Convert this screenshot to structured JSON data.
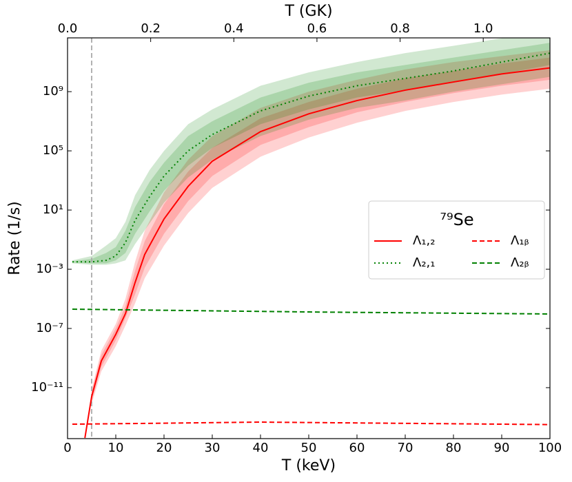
{
  "chart_data": {
    "type": "line",
    "xlabel": "T (keV)",
    "ylabel": "Rate (1/s)",
    "x2label": "T (GK)",
    "xlim": [
      0,
      100
    ],
    "xticks": [
      0,
      10,
      20,
      30,
      40,
      50,
      60,
      70,
      80,
      90,
      100
    ],
    "x2lim": [
      0,
      1.1605
    ],
    "x2ticks": [
      {
        "value": 0,
        "label": "0.0"
      },
      0.2,
      0.4,
      0.6,
      0.8,
      {
        "value": 1,
        "label": "1.0"
      }
    ],
    "ylim": [
      3.6e-15,
      4300000000000.0
    ],
    "yscale": "log",
    "yticks": [
      {
        "value": 1e-11,
        "label": "10⁻¹¹"
      },
      {
        "value": 1e-07,
        "label": "10⁻⁷"
      },
      {
        "value": 0.001,
        "label": "10⁻³"
      },
      {
        "value": 10,
        "label": "10¹"
      },
      {
        "value": 100000.0,
        "label": "10⁵"
      },
      {
        "value": 1000000000.0,
        "label": "10⁹"
      }
    ],
    "vline_x": 5,
    "vline_color": "#aaaaaa",
    "legend": {
      "title": "⁷⁹Se",
      "loc": "center right",
      "ncol": 2
    },
    "series": [
      {
        "name": "Λ₁,₂",
        "color": "#ff0000",
        "linestyle": "solid",
        "x": [
          3.6,
          5,
          7,
          10,
          12,
          14,
          16,
          20,
          25,
          30,
          40,
          50,
          60,
          70,
          80,
          90,
          100
        ],
        "values": [
          4e-15,
          2.5e-12,
          6.3e-10,
          4e-08,
          1e-06,
          0.000126,
          0.01,
          2.5,
          400,
          20000.0,
          2000000.0,
          31600000.0,
          250000000.0,
          1260000000.0,
          4500000000.0,
          15800000000.0,
          40000000000.0
        ],
        "band_inner_lower": [
          null,
          1.26e-12,
          2.5e-10,
          1.58e-08,
          5e-07,
          2e-05,
          0.00126,
          0.25,
          40,
          2000.0,
          250000.0,
          4000000.0,
          40000000.0,
          200000000.0,
          790000000.0,
          2500000000.0,
          6300000000.0
        ],
        "band_inner_upper": [
          null,
          5e-12,
          1.58e-09,
          1e-07,
          3.16e-06,
          0.00079,
          0.079,
          25,
          4000.0,
          158000.0,
          15800000.0,
          200000000.0,
          1580000000.0,
          7900000000.0,
          25000000000.0,
          79000000000.0,
          200000000000.0
        ],
        "band_outer_lower": [
          null,
          7.9e-13,
          1.26e-10,
          6.3e-09,
          1.58e-07,
          5e-06,
          0.00025,
          0.04,
          6.3,
          316,
          40000.0,
          790000.0,
          7900000.0,
          50000000.0,
          200000000.0,
          630000000.0,
          1580000000.0
        ],
        "band_outer_upper": [
          null,
          7.9e-12,
          3.16e-09,
          2e-07,
          1e-05,
          0.00316,
          0.4,
          158,
          25000.0,
          1000000.0,
          79000000.0,
          1000000000.0,
          6300000000.0,
          31600000000.0,
          100000000000.0,
          250000000000.0,
          630000000000.0
        ]
      },
      {
        "name": "Λ₂,₁",
        "color": "#008000",
        "linestyle": "dotted",
        "x": [
          1,
          5,
          8,
          10,
          12,
          14,
          17,
          20,
          25,
          30,
          40,
          50,
          60,
          70,
          80,
          90,
          100
        ],
        "values": [
          0.00316,
          0.00316,
          0.004,
          0.0079,
          0.063,
          2,
          79,
          2000.0,
          100000.0,
          1260000.0,
          50000000.0,
          500000000.0,
          2500000000.0,
          7900000000.0,
          25000000000.0,
          100000000000.0,
          400000000000.0
        ],
        "band_inner_lower": [
          0.0028,
          0.0025,
          0.0025,
          0.004,
          0.0126,
          0.25,
          7.9,
          200,
          10000.0,
          158000.0,
          6300000.0,
          63000000.0,
          400000000.0,
          1260000000.0,
          4000000000.0,
          15800000000.0,
          63000000000.0
        ],
        "band_inner_upper": [
          0.0035,
          0.005,
          0.0126,
          0.0316,
          0.4,
          15.8,
          794,
          15800.0,
          1000000.0,
          10000000.0,
          400000000.0,
          4000000000.0,
          20000000000.0,
          63000000000.0,
          200000000000.0,
          630000000000.0,
          2000000000000.0
        ],
        "band_outer_lower": [
          0.0025,
          0.002,
          0.002,
          0.0025,
          0.004,
          0.05,
          1.26,
          31.6,
          1580.0,
          25000.0,
          1000000.0,
          12600000.0,
          79000000.0,
          250000000.0,
          1000000000.0,
          3160000000.0,
          10000000000.0
        ],
        "band_outer_upper": [
          0.004,
          0.0079,
          0.04,
          0.126,
          1.58,
          100,
          5000.0,
          100000.0,
          6300000.0,
          63000000.0,
          2500000000.0,
          20000000000.0,
          100000000000.0,
          400000000000.0,
          1260000000000.0,
          4000000000000.0,
          10000000000000.0
        ]
      },
      {
        "name": "Λ₁ᵦ",
        "color": "#ff0000",
        "linestyle": "dashed",
        "x": [
          1,
          40,
          100
        ],
        "values": [
          3.4e-14,
          4.7e-14,
          3.2e-14
        ]
      },
      {
        "name": "Λ₂ᵦ",
        "color": "#008000",
        "linestyle": "dashed",
        "x": [
          1,
          50,
          100
        ],
        "values": [
          2e-06,
          1.3e-06,
          9.5e-07
        ]
      }
    ]
  }
}
